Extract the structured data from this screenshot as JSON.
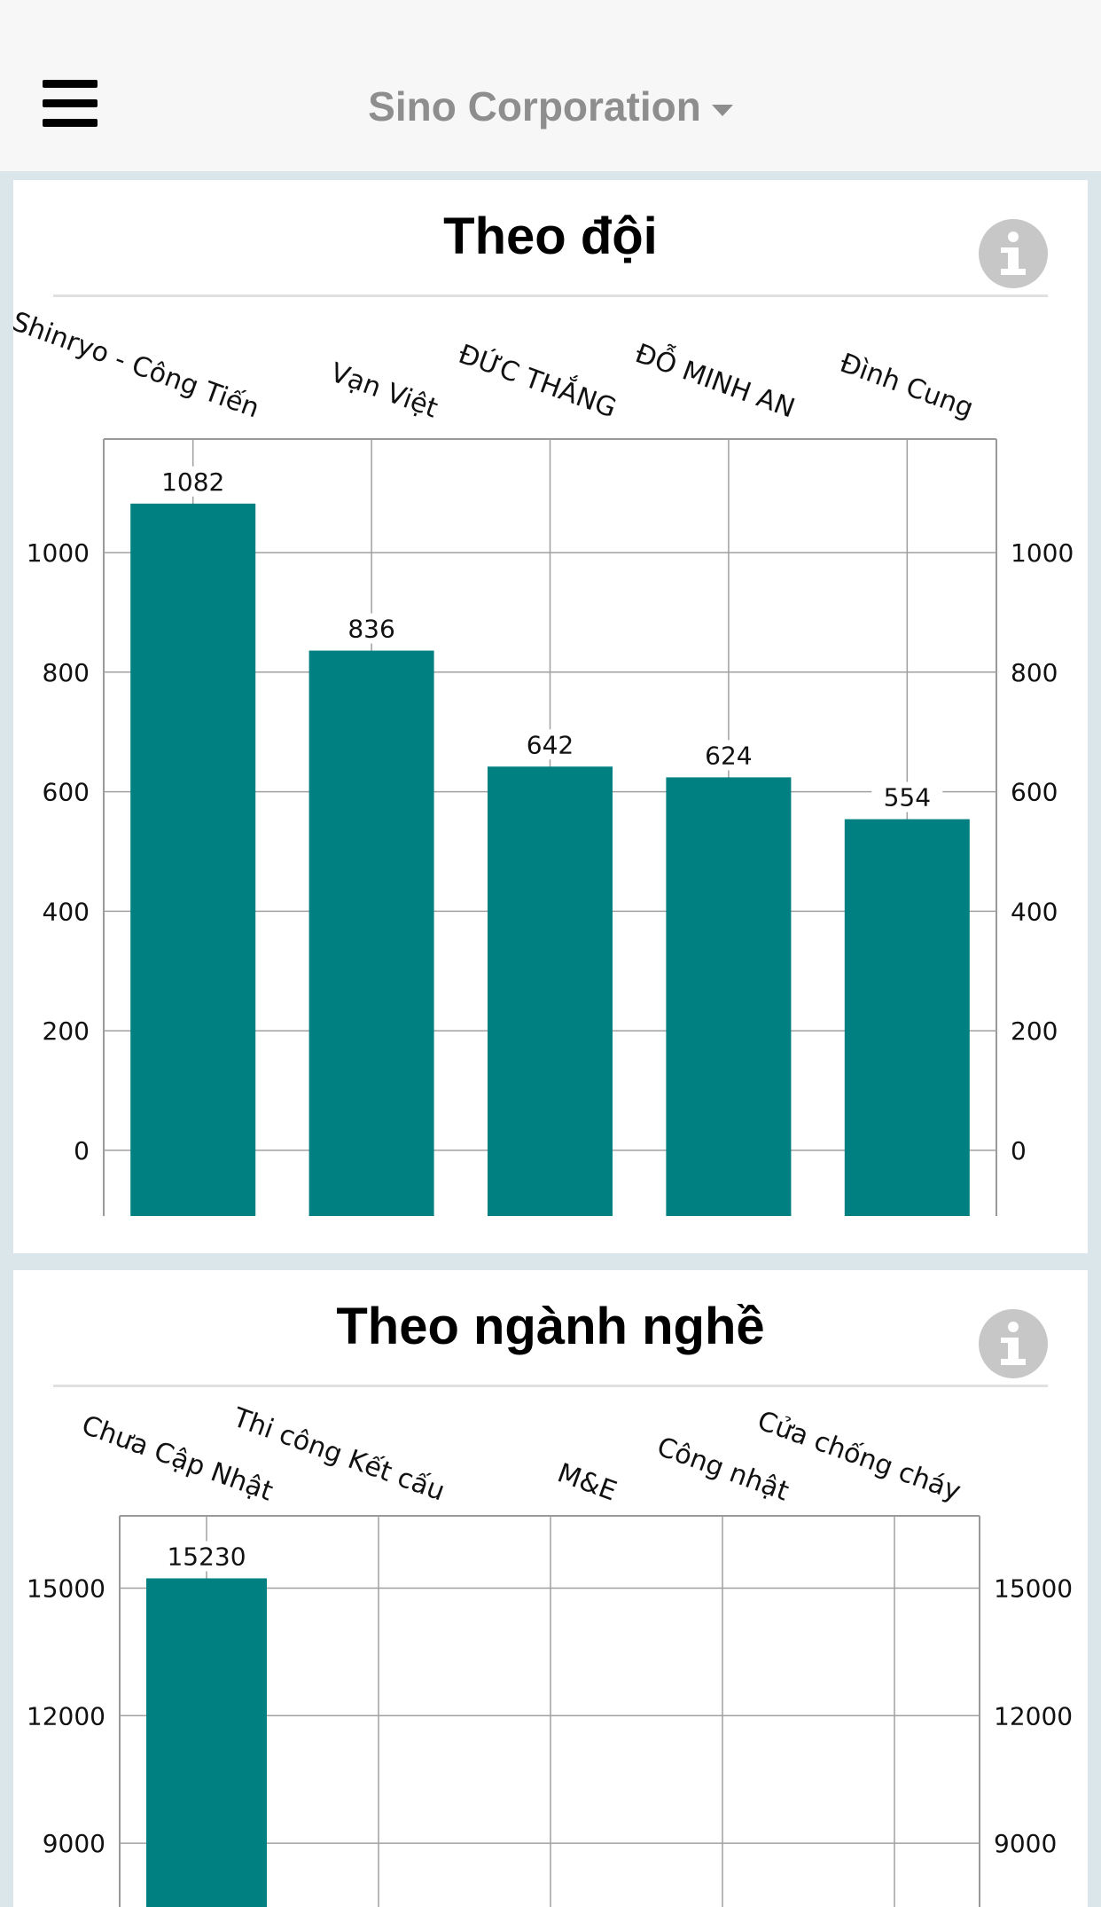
{
  "header": {
    "menu_icon": "hamburger-menu-icon",
    "company": "Sino Corporation",
    "dropdown_icon": "caret-down-icon"
  },
  "cards": [
    {
      "title": "Theo đội",
      "info_icon": "info-icon"
    },
    {
      "title": "Theo ngành nghề",
      "info_icon": "info-icon"
    }
  ],
  "chart_data": [
    {
      "type": "bar",
      "title": "Theo đội",
      "categories": [
        "Shinryo - Công Tiến",
        "Vạn Việt",
        "ĐỨC THẮNG",
        "ĐỖ MINH AN",
        "Đình Cung"
      ],
      "values": [
        1082,
        836,
        642,
        624,
        554
      ],
      "value_labels": [
        "1082",
        "836",
        "642",
        "624",
        "554"
      ],
      "y_ticks": [
        "0",
        "200",
        "400",
        "600",
        "800",
        "1000"
      ],
      "ylim": [
        -110,
        1190
      ],
      "bar_color": "#008080",
      "grid": true,
      "dual_y_axis": true,
      "category_labels_position": "top-rotated"
    },
    {
      "type": "bar",
      "title": "Theo ngành nghề",
      "categories": [
        "Chưa Cập Nhật",
        "Thi công Kết cấu",
        "M&E",
        "Công nhật",
        "Cửa chống cháy"
      ],
      "values": [
        15230,
        null,
        null,
        null,
        null
      ],
      "value_labels": [
        "15230",
        "",
        "",
        "",
        ""
      ],
      "y_ticks": [
        "9000",
        "12000",
        "15000"
      ],
      "ylim": [
        7500,
        16700
      ],
      "bar_color": "#008080",
      "grid": true,
      "dual_y_axis": true,
      "category_labels_position": "top-rotated"
    }
  ]
}
